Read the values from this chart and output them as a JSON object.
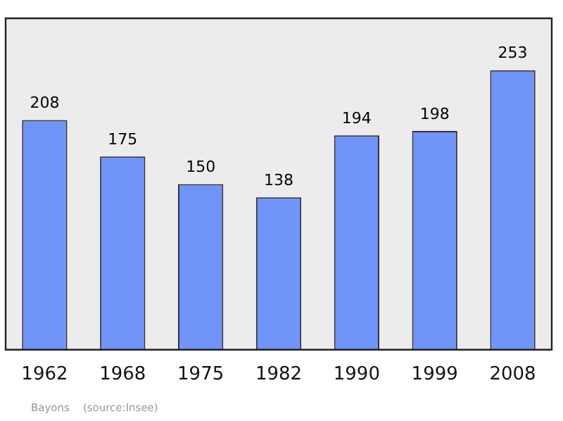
{
  "chart_data": {
    "type": "bar",
    "categories": [
      "1962",
      "1968",
      "1975",
      "1982",
      "1990",
      "1999",
      "2008"
    ],
    "values": [
      208,
      175,
      150,
      138,
      194,
      198,
      253
    ],
    "color": "#7094f8",
    "data_labels": true,
    "grid": false,
    "legend": false,
    "annotations": [
      "Bayons    (source:Insee)"
    ]
  }
}
